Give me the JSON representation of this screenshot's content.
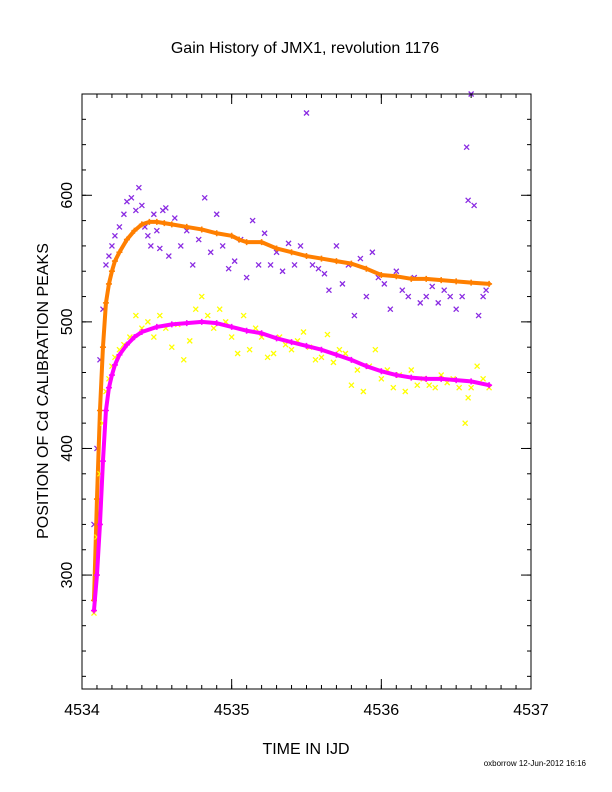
{
  "credit": "oxborrow 12-Jun-2012 16:16",
  "chart_data": {
    "type": "scatter",
    "title": "Gain History of JMX1, revolution 1176",
    "xlabel": "TIME IN IJD",
    "ylabel": "POSITION OF Cd CALIBRATION PEAKS",
    "xlim": [
      4534,
      4537
    ],
    "ylim": [
      210,
      680
    ],
    "xticks": [
      4534,
      4535,
      4536,
      4537
    ],
    "yticks": [
      300,
      400,
      500,
      600
    ],
    "grid": false,
    "colors": {
      "upper_scatter": "#8a2be2",
      "upper_trend": "#ff7f00",
      "lower_scatter": "#ffff00",
      "lower_trend": "#ff00ff"
    },
    "series": [
      {
        "style": "scatter",
        "color": "#8a2be2",
        "x": [
          4534.08,
          4534.1,
          4534.12,
          4534.14,
          4534.16,
          4534.18,
          4534.2,
          4534.22,
          4534.25,
          4534.28,
          4534.3,
          4534.33,
          4534.36,
          4534.38,
          4534.4,
          4534.42,
          4534.44,
          4534.46,
          4534.48,
          4534.5,
          4534.52,
          4534.54,
          4534.56,
          4534.58,
          4534.62,
          4534.66,
          4534.7,
          4534.74,
          4534.78,
          4534.82,
          4534.86,
          4534.9,
          4534.94,
          4534.98,
          4535.02,
          4535.06,
          4535.1,
          4535.14,
          4535.18,
          4535.22,
          4535.26,
          4535.3,
          4535.34,
          4535.38,
          4535.42,
          4535.46,
          4535.5,
          4535.54,
          4535.58,
          4535.62,
          4535.65,
          4535.7,
          4535.74,
          4535.78,
          4535.82,
          4535.86,
          4535.9,
          4535.94,
          4535.98,
          4536.02,
          4536.06,
          4536.1,
          4536.14,
          4536.18,
          4536.22,
          4536.26,
          4536.3,
          4536.34,
          4536.38,
          4536.42,
          4536.46,
          4536.5,
          4536.54,
          4536.57,
          4536.58,
          4536.6,
          4536.62,
          4536.65,
          4536.68,
          4536.7
        ],
        "y": [
          340,
          400,
          470,
          510,
          545,
          552,
          560,
          568,
          575,
          585,
          595,
          598,
          588,
          606,
          592,
          575,
          568,
          560,
          585,
          572,
          558,
          588,
          590,
          552,
          582,
          560,
          572,
          545,
          565,
          598,
          555,
          585,
          560,
          542,
          548,
          565,
          535,
          580,
          545,
          570,
          545,
          555,
          540,
          562,
          545,
          560,
          665,
          545,
          542,
          538,
          525,
          560,
          530,
          545,
          505,
          550,
          520,
          555,
          535,
          530,
          510,
          540,
          525,
          520,
          535,
          515,
          520,
          528,
          515,
          525,
          520,
          510,
          520,
          638,
          596,
          680,
          592,
          505,
          520,
          525
        ]
      },
      {
        "style": "trend",
        "color": "#ff7f00",
        "x": [
          4534.08,
          4534.1,
          4534.12,
          4534.14,
          4534.16,
          4534.18,
          4534.2,
          4534.22,
          4534.25,
          4534.3,
          4534.35,
          4534.4,
          4534.45,
          4534.5,
          4534.55,
          4534.6,
          4534.7,
          4534.8,
          4534.9,
          4535.0,
          4535.05,
          4535.1,
          4535.2,
          4535.3,
          4535.4,
          4535.5,
          4535.6,
          4535.7,
          4535.8,
          4535.9,
          4536.0,
          4536.1,
          4536.2,
          4536.3,
          4536.4,
          4536.5,
          4536.6,
          4536.72
        ],
        "y": [
          280,
          360,
          430,
          480,
          515,
          530,
          540,
          548,
          555,
          565,
          572,
          577,
          579,
          579,
          578,
          577,
          575,
          573,
          570,
          568,
          565,
          563,
          563,
          558,
          555,
          552,
          550,
          548,
          546,
          542,
          537,
          536,
          534,
          534,
          533,
          532,
          531,
          530
        ]
      },
      {
        "style": "scatter",
        "color": "#ffff00",
        "x": [
          4534.08,
          4534.1,
          4534.12,
          4534.14,
          4534.16,
          4534.18,
          4534.2,
          4534.22,
          4534.25,
          4534.28,
          4534.32,
          4534.36,
          4534.4,
          4534.44,
          4534.48,
          4534.52,
          4534.56,
          4534.6,
          4534.64,
          4534.68,
          4534.72,
          4534.76,
          4534.8,
          4534.84,
          4534.88,
          4534.92,
          4534.96,
          4535.0,
          4535.04,
          4535.08,
          4535.12,
          4535.16,
          4535.2,
          4535.24,
          4535.28,
          4535.32,
          4535.36,
          4535.4,
          4535.44,
          4535.48,
          4535.52,
          4535.56,
          4535.6,
          4535.64,
          4535.68,
          4535.72,
          4535.76,
          4535.8,
          4535.84,
          4535.88,
          4535.92,
          4535.96,
          4536.0,
          4536.04,
          4536.08,
          4536.12,
          4536.16,
          4536.2,
          4536.24,
          4536.28,
          4536.32,
          4536.36,
          4536.4,
          4536.44,
          4536.48,
          4536.52,
          4536.56,
          4536.58,
          4536.6,
          4536.64,
          4536.68,
          4536.72
        ],
        "y": [
          270,
          330,
          380,
          420,
          445,
          455,
          465,
          472,
          478,
          482,
          488,
          505,
          495,
          500,
          488,
          505,
          495,
          480,
          498,
          470,
          485,
          510,
          520,
          505,
          495,
          510,
          500,
          488,
          475,
          505,
          478,
          495,
          488,
          472,
          475,
          488,
          482,
          478,
          485,
          492,
          480,
          470,
          472,
          490,
          468,
          478,
          475,
          450,
          462,
          445,
          465,
          478,
          455,
          462,
          448,
          458,
          445,
          462,
          450,
          455,
          450,
          448,
          458,
          452,
          455,
          448,
          420,
          440,
          448,
          465,
          455,
          448
        ]
      },
      {
        "style": "trend",
        "color": "#ff00ff",
        "x": [
          4534.08,
          4534.1,
          4534.12,
          4534.14,
          4534.16,
          4534.18,
          4534.2,
          4534.22,
          4534.25,
          4534.3,
          4534.35,
          4534.4,
          4534.5,
          4534.6,
          4534.7,
          4534.8,
          4534.9,
          4535.0,
          4535.1,
          4535.2,
          4535.3,
          4535.4,
          4535.5,
          4535.6,
          4535.7,
          4535.8,
          4535.9,
          4536.0,
          4536.1,
          4536.2,
          4536.3,
          4536.4,
          4536.5,
          4536.6,
          4536.72
        ],
        "y": [
          272,
          300,
          340,
          390,
          430,
          448,
          458,
          466,
          474,
          482,
          488,
          492,
          496,
          498,
          499,
          500,
          499,
          496,
          493,
          491,
          487,
          484,
          481,
          478,
          474,
          470,
          465,
          461,
          458,
          456,
          455,
          455,
          454,
          453,
          450
        ]
      }
    ]
  }
}
